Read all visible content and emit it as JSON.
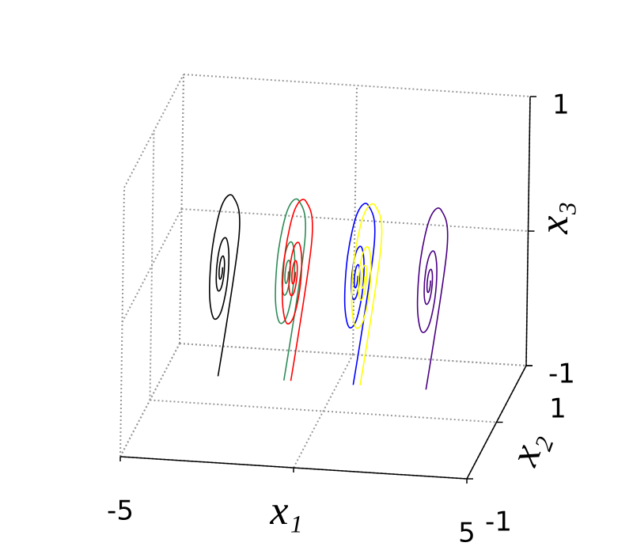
{
  "chart_data": {
    "type": "line3d",
    "xlabel": "x₁",
    "ylabel": "x₂",
    "zlabel": "x₃",
    "xlim": [
      -5,
      5
    ],
    "ylim": [
      -1,
      1
    ],
    "zlim": [
      -1,
      1
    ],
    "xticks": [
      -5,
      {
        "value": 0,
        "label": null
      },
      5
    ],
    "yticks": [
      -1,
      {
        "value": 0,
        "label": null
      },
      1
    ],
    "zticks": [
      -1,
      {
        "value": 0,
        "label": null
      },
      1
    ],
    "grid": true,
    "series": [
      {
        "color": "#000000",
        "x": [
          -2.3,
          -3,
          -3,
          -3,
          -3,
          -3,
          -3,
          -3,
          -3,
          -3,
          -3,
          -3,
          -3,
          -3,
          -3,
          -3,
          -3,
          -3,
          -3,
          -3,
          -3,
          -3,
          -3,
          -3,
          -3,
          -3
        ],
        "y": [
          -0.9,
          0.6,
          0.382,
          0,
          -0.309,
          -0.394,
          -0.25,
          0,
          0.203,
          0.258,
          0.164,
          0,
          -0.133,
          -0.169,
          -0.107,
          0,
          0.087,
          0.111,
          0.071,
          0,
          -0.057,
          -0.073,
          -0.047,
          0,
          0.037,
          0.048
        ],
        "z": [
          -0.4,
          0,
          0.382,
          0.486,
          0.309,
          0,
          -0.25,
          -0.319,
          -0.203,
          0,
          0.164,
          0.209,
          0.133,
          0,
          -0.107,
          -0.137,
          -0.087,
          0,
          0.071,
          0.09,
          0.057,
          0,
          -0.047,
          -0.059,
          -0.037,
          0
        ]
      },
      {
        "color": "#2e8b57",
        "x": [
          -0.4,
          -1.1,
          -1.1,
          -1.1,
          -1.1,
          -1.1,
          -1.1,
          -1.1,
          -1.1,
          -1.1,
          -1.1,
          -1.1,
          -1.1,
          -1.1,
          -1.1,
          -1.1,
          -1.1,
          -1.1,
          -1.1,
          -1.1,
          -1.1,
          -1.1,
          -1.1,
          -1.1,
          -1.1,
          -1.1
        ],
        "y": [
          -0.9,
          0.6,
          0.382,
          0,
          -0.309,
          -0.394,
          -0.25,
          0,
          0.203,
          0.258,
          0.164,
          0,
          -0.133,
          -0.169,
          -0.107,
          0,
          0.087,
          0.111,
          0.071,
          0,
          -0.057,
          -0.073,
          -0.047,
          0,
          0.037,
          0.048
        ],
        "z": [
          -0.4,
          0,
          0.382,
          0.486,
          0.309,
          0,
          -0.25,
          -0.319,
          -0.203,
          0,
          0.164,
          0.209,
          0.133,
          0,
          -0.107,
          -0.137,
          -0.087,
          0,
          0.071,
          0.09,
          0.057,
          0,
          -0.047,
          -0.059,
          -0.037,
          0
        ]
      },
      {
        "color": "#ff0000",
        "x": [
          -0.2,
          -0.9,
          -0.9,
          -0.9,
          -0.9,
          -0.9,
          -0.9,
          -0.9,
          -0.9,
          -0.9,
          -0.9,
          -0.9,
          -0.9,
          -0.9,
          -0.9,
          -0.9,
          -0.9,
          -0.9,
          -0.9,
          -0.9,
          -0.9,
          -0.9,
          -0.9,
          -0.9,
          -0.9,
          -0.9
        ],
        "y": [
          -0.9,
          0.6,
          0.382,
          0,
          -0.309,
          -0.394,
          -0.25,
          0,
          0.203,
          0.258,
          0.164,
          0,
          -0.133,
          -0.169,
          -0.107,
          0,
          0.087,
          0.111,
          0.071,
          0,
          -0.057,
          -0.073,
          -0.047,
          0,
          0.037,
          0.048
        ],
        "z": [
          -0.4,
          0,
          0.382,
          0.486,
          0.309,
          0,
          -0.25,
          -0.319,
          -0.203,
          0,
          0.164,
          0.209,
          0.133,
          0,
          -0.107,
          -0.137,
          -0.087,
          0,
          0.071,
          0.09,
          0.057,
          0,
          -0.047,
          -0.059,
          -0.037,
          0
        ]
      },
      {
        "color": "#0000ff",
        "x": [
          1.6,
          0.9,
          0.9,
          0.9,
          0.9,
          0.9,
          0.9,
          0.9,
          0.9,
          0.9,
          0.9,
          0.9,
          0.9,
          0.9,
          0.9,
          0.9,
          0.9,
          0.9,
          0.9,
          0.9,
          0.9,
          0.9,
          0.9,
          0.9,
          0.9,
          0.9
        ],
        "y": [
          -0.9,
          0.6,
          0.382,
          0,
          -0.309,
          -0.394,
          -0.25,
          0,
          0.203,
          0.258,
          0.164,
          0,
          -0.133,
          -0.169,
          -0.107,
          0,
          0.087,
          0.111,
          0.071,
          0,
          -0.057,
          -0.073,
          -0.047,
          0,
          0.037,
          0.048
        ],
        "z": [
          -0.4,
          0,
          0.382,
          0.486,
          0.309,
          0,
          -0.25,
          -0.319,
          -0.203,
          0,
          0.164,
          0.209,
          0.133,
          0,
          -0.107,
          -0.137,
          -0.087,
          0,
          0.071,
          0.09,
          0.057,
          0,
          -0.047,
          -0.059,
          -0.037,
          0
        ]
      },
      {
        "color": "#ffff00",
        "x": [
          1.8,
          1.1,
          1.1,
          1.1,
          1.1,
          1.1,
          1.1,
          1.1,
          1.1,
          1.1,
          1.1,
          1.1,
          1.1,
          1.1,
          1.1,
          1.1,
          1.1,
          1.1,
          1.1,
          1.1,
          1.1,
          1.1,
          1.1,
          1.1,
          1.1,
          1.1
        ],
        "y": [
          -0.9,
          0.6,
          0.382,
          0,
          -0.309,
          -0.394,
          -0.25,
          0,
          0.203,
          0.258,
          0.164,
          0,
          -0.133,
          -0.169,
          -0.107,
          0,
          0.087,
          0.111,
          0.071,
          0,
          -0.057,
          -0.073,
          -0.047,
          0,
          0.037,
          0.048
        ],
        "z": [
          -0.4,
          0,
          0.382,
          0.486,
          0.309,
          0,
          -0.25,
          -0.319,
          -0.203,
          0,
          0.164,
          0.209,
          0.133,
          0,
          -0.107,
          -0.137,
          -0.087,
          0,
          0.071,
          0.09,
          0.057,
          0,
          -0.047,
          -0.059,
          -0.037,
          0
        ]
      },
      {
        "color": "#4b0082",
        "x": [
          3.7,
          3,
          3,
          3,
          3,
          3,
          3,
          3,
          3,
          3,
          3,
          3,
          3,
          3,
          3,
          3,
          3,
          3,
          3,
          3,
          3,
          3,
          3,
          3,
          3,
          3
        ],
        "y": [
          -0.9,
          0.6,
          0.382,
          0,
          -0.309,
          -0.394,
          -0.25,
          0,
          0.203,
          0.258,
          0.164,
          0,
          -0.133,
          -0.169,
          -0.107,
          0,
          0.087,
          0.111,
          0.071,
          0,
          -0.057,
          -0.073,
          -0.047,
          0,
          0.037,
          0.048
        ],
        "z": [
          -0.4,
          0,
          0.382,
          0.486,
          0.309,
          0,
          -0.25,
          -0.319,
          -0.203,
          0,
          0.164,
          0.209,
          0.133,
          0,
          -0.107,
          -0.137,
          -0.087,
          0,
          0.071,
          0.09,
          0.057,
          0,
          -0.047,
          -0.059,
          -0.037,
          0
        ]
      }
    ]
  }
}
